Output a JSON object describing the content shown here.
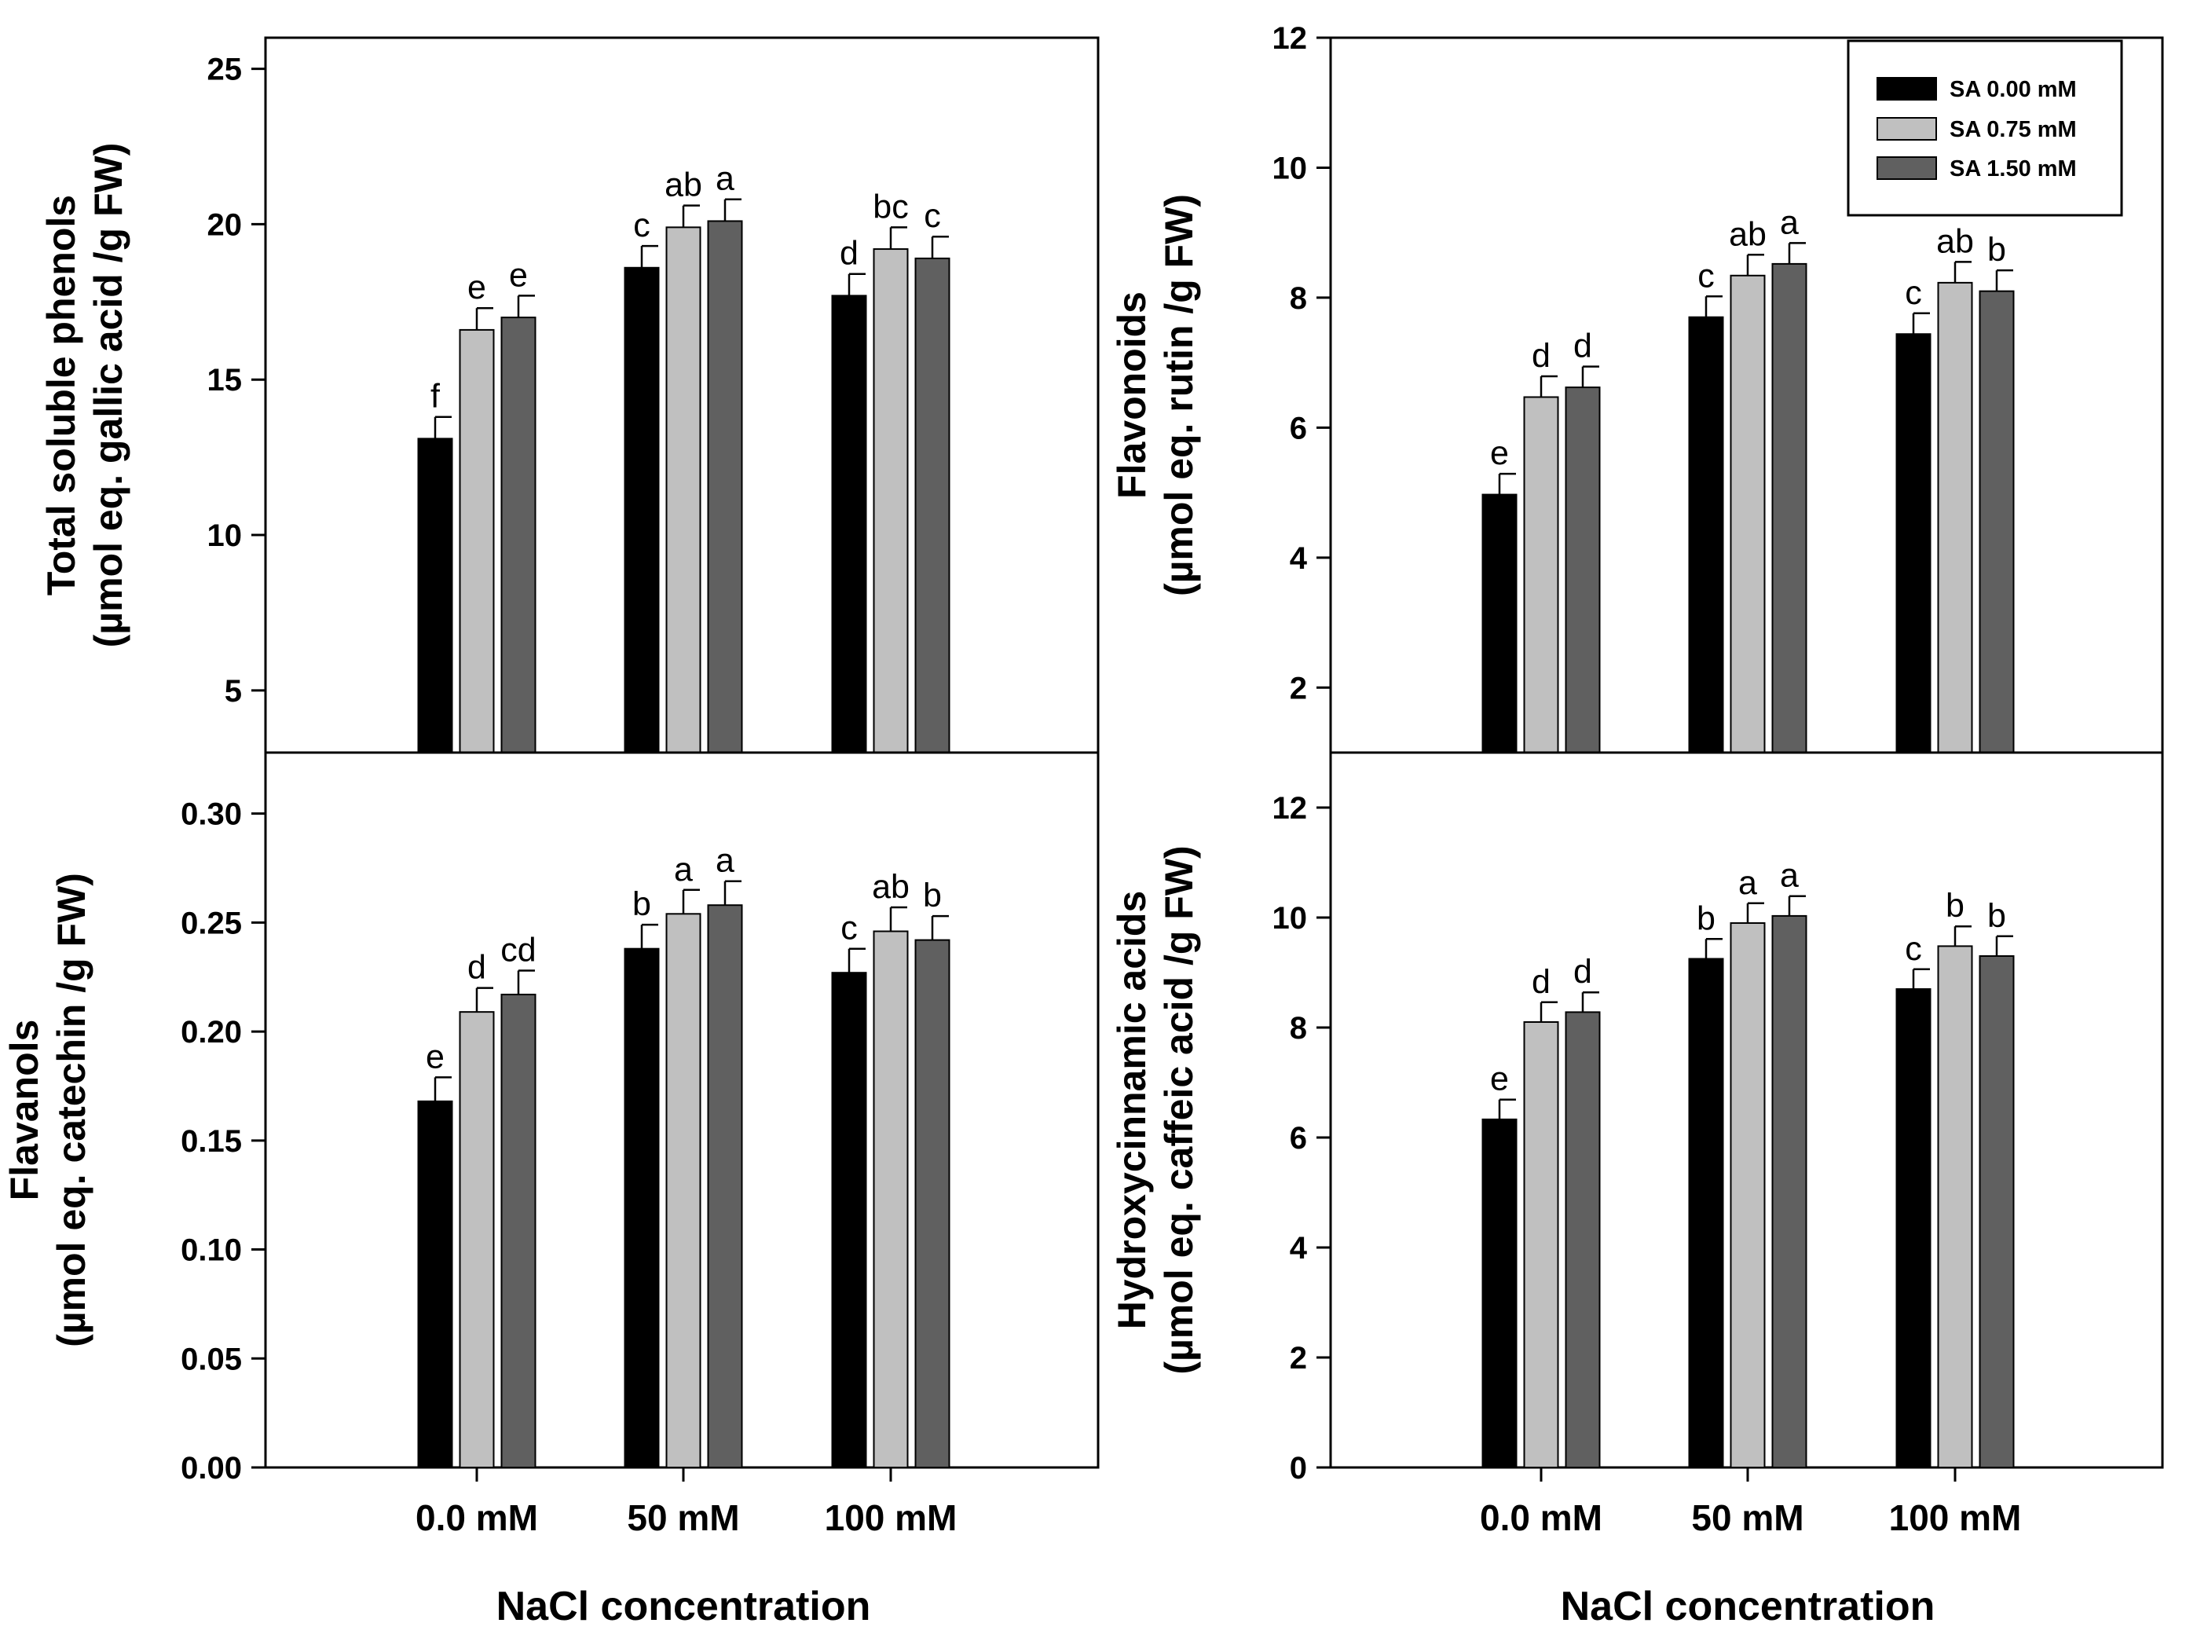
{
  "figure": {
    "xlabel": "NaCl concentration",
    "categories": [
      "0.0 mM",
      "50 mM",
      "100 mM"
    ],
    "legend": [
      {
        "name": "SA 0.00 mM",
        "color": "#000000"
      },
      {
        "name": "SA 0.75 mM",
        "color": "#c0c0c0"
      },
      {
        "name": "SA 1.50 mM",
        "color": "#606060"
      }
    ]
  },
  "chart_data": [
    {
      "id": "phenols",
      "type": "bar",
      "ylabel_line1": "Total soluble phenols",
      "ylabel_line2": "(µmol eq. gallic acid /g FW)",
      "ylim": [
        3,
        26
      ],
      "yticks": [
        5,
        10,
        15,
        20,
        25
      ],
      "ytick_labels": [
        "5",
        "10",
        "15",
        "20",
        "25"
      ],
      "categories": [
        "0.0 mM",
        "50 mM",
        "100 mM"
      ],
      "series": [
        {
          "name": "SA 0.00 mM",
          "values": [
            13.1,
            18.6,
            17.7
          ],
          "errors": [
            0.7,
            0.7,
            0.7
          ],
          "letters": [
            "f",
            "c",
            "d"
          ]
        },
        {
          "name": "SA 0.75 mM",
          "values": [
            16.6,
            19.9,
            19.2
          ],
          "errors": [
            0.7,
            0.7,
            0.7
          ],
          "letters": [
            "e",
            "ab",
            "bc"
          ]
        },
        {
          "name": "SA 1.50 mM",
          "values": [
            17.0,
            20.1,
            18.9
          ],
          "errors": [
            0.7,
            0.7,
            0.7
          ],
          "letters": [
            "e",
            "a",
            "c"
          ]
        }
      ]
    },
    {
      "id": "flavonoids",
      "type": "bar",
      "ylabel_line1": "Flavonoids",
      "ylabel_line2": "(µmol eq. rutin /g FW)",
      "ylim": [
        1,
        12
      ],
      "yticks": [
        2,
        4,
        6,
        8,
        10,
        12
      ],
      "ytick_labels": [
        "2",
        "4",
        "6",
        "8",
        "10",
        "12"
      ],
      "categories": [
        "0.0 mM",
        "50 mM",
        "100 mM"
      ],
      "series": [
        {
          "name": "SA 0.00 mM",
          "values": [
            4.97,
            7.7,
            7.44
          ],
          "errors": [
            0.32,
            0.32,
            0.32
          ],
          "letters": [
            "e",
            "c",
            "c"
          ]
        },
        {
          "name": "SA 0.75 mM",
          "values": [
            6.47,
            8.34,
            8.23
          ],
          "errors": [
            0.32,
            0.32,
            0.32
          ],
          "letters": [
            "d",
            "ab",
            "ab"
          ]
        },
        {
          "name": "SA 1.50 mM",
          "values": [
            6.62,
            8.52,
            8.1
          ],
          "errors": [
            0.32,
            0.32,
            0.32
          ],
          "letters": [
            "d",
            "a",
            "b"
          ]
        }
      ]
    },
    {
      "id": "flavanols",
      "type": "bar",
      "ylabel_line1": "Flavanols",
      "ylabel_line2": "(µmol eq. catechin /g FW)",
      "ylim": [
        0,
        0.328
      ],
      "yticks": [
        0,
        0.05,
        0.1,
        0.15,
        0.2,
        0.25,
        0.3
      ],
      "ytick_labels": [
        "0.00",
        "0.05",
        "0.10",
        "0.15",
        "0.20",
        "0.25",
        "0.30"
      ],
      "categories": [
        "0.0 mM",
        "50 mM",
        "100 mM"
      ],
      "series": [
        {
          "name": "SA 0.00 mM",
          "values": [
            0.168,
            0.238,
            0.227
          ],
          "errors": [
            0.011,
            0.011,
            0.011
          ],
          "letters": [
            "e",
            "b",
            "c"
          ]
        },
        {
          "name": "SA 0.75 mM",
          "values": [
            0.209,
            0.254,
            0.246
          ],
          "errors": [
            0.011,
            0.011,
            0.011
          ],
          "letters": [
            "d",
            "a",
            "ab"
          ]
        },
        {
          "name": "SA 1.50 mM",
          "values": [
            0.217,
            0.258,
            0.242
          ],
          "errors": [
            0.011,
            0.011,
            0.011
          ],
          "letters": [
            "cd",
            "a",
            "b"
          ]
        }
      ]
    },
    {
      "id": "hydroxycinnamic",
      "type": "bar",
      "ylabel_line1": "Hydroxycinnamic acids",
      "ylabel_line2": "(µmol eq. caffeic acid /g FW)",
      "ylim": [
        0,
        13
      ],
      "yticks": [
        0,
        2,
        4,
        6,
        8,
        10,
        12
      ],
      "ytick_labels": [
        "0",
        "2",
        "4",
        "6",
        "8",
        "10",
        "12"
      ],
      "categories": [
        "0.0 mM",
        "50 mM",
        "100 mM"
      ],
      "series": [
        {
          "name": "SA 0.00 mM",
          "values": [
            6.33,
            9.25,
            8.7
          ],
          "errors": [
            0.36,
            0.36,
            0.36
          ],
          "letters": [
            "e",
            "b",
            "c"
          ]
        },
        {
          "name": "SA 0.75 mM",
          "values": [
            8.1,
            9.9,
            9.48
          ],
          "errors": [
            0.36,
            0.36,
            0.36
          ],
          "letters": [
            "d",
            "a",
            "b"
          ]
        },
        {
          "name": "SA 1.50 mM",
          "values": [
            8.28,
            10.03,
            9.3
          ],
          "errors": [
            0.36,
            0.36,
            0.36
          ],
          "letters": [
            "d",
            "a",
            "b"
          ]
        }
      ]
    }
  ]
}
